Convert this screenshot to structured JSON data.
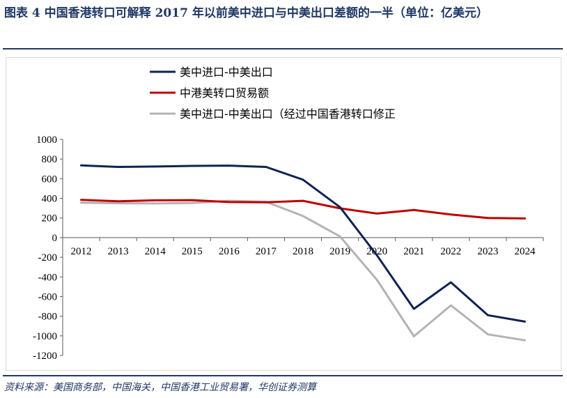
{
  "title": "图表 4 中国香港转口可解释 2017 年以前美中进口与中美出口差额的一半（单位：亿美元）",
  "source": "资料来源：美国商务部，中国海关，中国香港工业贸易署，华创证券测算",
  "colors": {
    "title": "#1f3864",
    "series": [
      "#0e2353",
      "#c00000",
      "#b3b3b3"
    ]
  },
  "chart_data": {
    "type": "line",
    "x": [
      "2012",
      "2013",
      "2014",
      "2015",
      "2016",
      "2017",
      "2018",
      "2019",
      "2020",
      "2021",
      "2022",
      "2023",
      "2024"
    ],
    "ylim": [
      -1200,
      1000
    ],
    "yticks": [
      "1000",
      "800",
      "600",
      "400",
      "200",
      "0",
      "-200",
      "-400",
      "-600",
      "-800",
      "-1000",
      "-1200"
    ],
    "legend_position": "top-left",
    "grid": false,
    "series": [
      {
        "name": "美中进口-中美出口",
        "values": [
          735,
          720,
          724,
          730,
          733,
          720,
          590,
          310,
          -180,
          -725,
          -455,
          -790,
          -855
        ]
      },
      {
        "name": "中港美转口贸易额",
        "values": [
          385,
          370,
          380,
          382,
          362,
          360,
          375,
          298,
          245,
          282,
          235,
          200,
          195
        ]
      },
      {
        "name": "美中进口-中美出口（经过中国香港转口修正",
        "values": [
          355,
          350,
          348,
          352,
          375,
          365,
          220,
          12,
          -430,
          -1005,
          -690,
          -985,
          -1045
        ]
      }
    ]
  }
}
